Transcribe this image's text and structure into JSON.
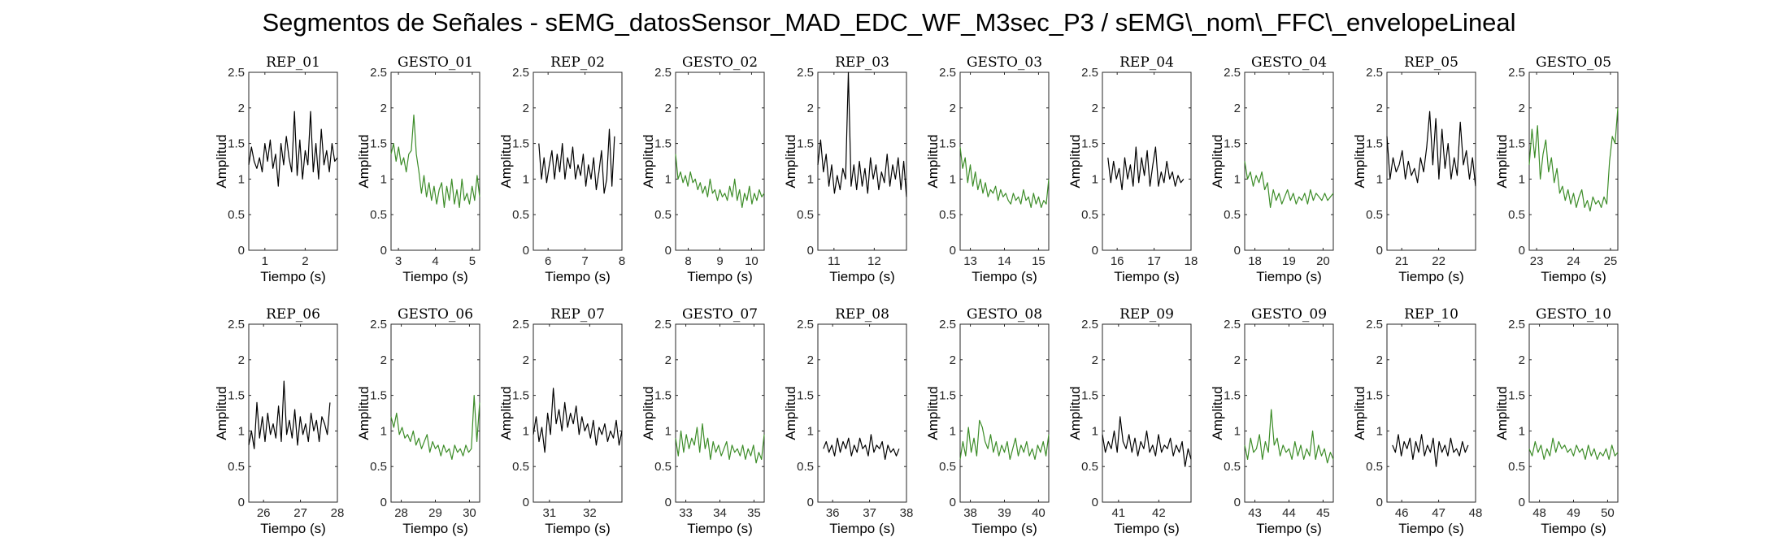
{
  "figure_title": "Segmentos de Señales - sEMG_datosSensor_MAD_EDC_WF_M3sec_P3 / sEMG\\_nom\\_FFC\\_envelopeLineal",
  "colors": {
    "rep": "#000000",
    "gesto": "#3c8c28",
    "axes": "#262626"
  },
  "chart_data": [
    {
      "type": "line",
      "title": "REP_01",
      "xlabel": "Tiempo (s)",
      "ylabel": "Amplitud",
      "xlim": [
        0.6,
        2.8
      ],
      "ylim": [
        0,
        2.5
      ],
      "xticks": [
        1,
        2
      ],
      "yticks": [
        0,
        0.5,
        1,
        1.5,
        2,
        2.5
      ],
      "color": "rep",
      "x_range": [
        0.6,
        2.8
      ],
      "y": [
        1.2,
        1.45,
        1.25,
        1.15,
        1.3,
        1.1,
        1.5,
        1.25,
        1.55,
        1.15,
        1.35,
        0.9,
        1.5,
        1.2,
        1.6,
        1.3,
        1.1,
        1.95,
        1.05,
        1.55,
        1.0,
        1.4,
        1.2,
        1.95,
        1.1,
        1.5,
        1.0,
        1.7,
        1.2,
        1.4,
        1.1,
        1.5,
        1.25,
        1.3
      ]
    },
    {
      "type": "line",
      "title": "GESTO_01",
      "xlabel": "Tiempo (s)",
      "ylabel": "Amplitud",
      "xlim": [
        2.8,
        5.2
      ],
      "ylim": [
        0,
        2.5
      ],
      "xticks": [
        3,
        4,
        5
      ],
      "yticks": [
        0,
        0.5,
        1,
        1.5,
        2,
        2.5
      ],
      "color": "gesto",
      "x_range": [
        2.8,
        5.2
      ],
      "y": [
        1.35,
        1.5,
        1.25,
        1.45,
        1.2,
        1.3,
        1.1,
        1.35,
        1.4,
        1.9,
        1.35,
        1.1,
        0.8,
        1.05,
        0.75,
        0.95,
        0.7,
        0.9,
        0.65,
        0.85,
        0.95,
        0.6,
        0.9,
        0.7,
        1.0,
        0.65,
        0.85,
        0.6,
        1.0,
        0.7,
        0.8,
        0.65,
        0.9,
        0.7,
        1.05,
        0.75
      ]
    },
    {
      "type": "line",
      "title": "REP_02",
      "xlabel": "Tiempo (s)",
      "ylabel": "Amplitud",
      "xlim": [
        5.6,
        8.0
      ],
      "ylim": [
        0,
        2.5
      ],
      "xticks": [
        6,
        7,
        8
      ],
      "yticks": [
        0,
        0.5,
        1,
        1.5,
        2,
        2.5
      ],
      "color": "rep",
      "x_range": [
        5.75,
        7.8
      ],
      "y": [
        1.5,
        1.0,
        1.3,
        0.95,
        1.2,
        1.4,
        1.0,
        1.35,
        1.1,
        1.5,
        1.0,
        1.3,
        1.15,
        1.45,
        1.0,
        1.2,
        1.05,
        1.35,
        0.9,
        1.2,
        1.0,
        1.3,
        0.85,
        1.1,
        1.4,
        0.8,
        1.0,
        1.7,
        0.9,
        1.6
      ]
    },
    {
      "type": "line",
      "title": "GESTO_02",
      "xlabel": "Tiempo (s)",
      "ylabel": "Amplitud",
      "xlim": [
        7.6,
        10.4
      ],
      "ylim": [
        0,
        2.5
      ],
      "xticks": [
        8,
        9,
        10
      ],
      "yticks": [
        0,
        0.5,
        1,
        1.5,
        2,
        2.5
      ],
      "color": "gesto",
      "x_range": [
        7.6,
        10.4
      ],
      "y": [
        1.35,
        1.0,
        1.1,
        0.95,
        1.05,
        0.9,
        1.1,
        0.95,
        1.0,
        0.85,
        0.95,
        0.8,
        0.9,
        0.75,
        1.0,
        0.8,
        0.85,
        0.7,
        0.85,
        0.75,
        0.8,
        0.7,
        0.9,
        0.75,
        1.0,
        0.7,
        0.85,
        0.6,
        0.8,
        0.7,
        0.9,
        0.65,
        0.8,
        0.7,
        0.85,
        0.75,
        0.8
      ]
    },
    {
      "type": "line",
      "title": "REP_03",
      "xlabel": "Tiempo (s)",
      "ylabel": "Amplitud",
      "xlim": [
        10.6,
        12.8
      ],
      "ylim": [
        0,
        2.5
      ],
      "xticks": [
        11,
        12
      ],
      "yticks": [
        0,
        0.5,
        1,
        1.5,
        2,
        2.5
      ],
      "color": "rep",
      "x_range": [
        10.6,
        12.8
      ],
      "y": [
        1.2,
        1.55,
        1.1,
        1.35,
        0.9,
        1.2,
        0.8,
        1.05,
        0.85,
        1.15,
        1.0,
        2.5,
        0.9,
        1.2,
        0.85,
        1.25,
        0.9,
        1.15,
        0.8,
        1.3,
        1.0,
        1.2,
        0.85,
        1.1,
        0.95,
        1.35,
        0.9,
        1.2,
        1.0,
        1.3,
        0.85,
        1.25,
        0.75
      ]
    },
    {
      "type": "line",
      "title": "GESTO_03",
      "xlabel": "Tiempo (s)",
      "ylabel": "Amplitud",
      "xlim": [
        12.7,
        15.3
      ],
      "ylim": [
        0,
        2.5
      ],
      "xticks": [
        13,
        14,
        15
      ],
      "yticks": [
        0,
        0.5,
        1,
        1.5,
        2,
        2.5
      ],
      "color": "gesto",
      "x_range": [
        12.7,
        15.3
      ],
      "y": [
        1.45,
        1.15,
        1.3,
        0.95,
        1.2,
        0.9,
        1.1,
        0.85,
        1.0,
        0.8,
        0.95,
        0.75,
        0.85,
        0.8,
        0.9,
        0.7,
        0.85,
        0.75,
        0.8,
        0.7,
        0.65,
        0.8,
        0.7,
        0.75,
        0.65,
        0.85,
        0.7,
        0.75,
        0.6,
        0.8,
        0.65,
        0.75,
        0.6,
        0.7,
        0.65,
        1.0
      ]
    },
    {
      "type": "line",
      "title": "REP_04",
      "xlabel": "Tiempo (s)",
      "ylabel": "Amplitud",
      "xlim": [
        15.6,
        18.0
      ],
      "ylim": [
        0,
        2.5
      ],
      "xticks": [
        16,
        17,
        18
      ],
      "yticks": [
        0,
        0.5,
        1,
        1.5,
        2,
        2.5
      ],
      "color": "rep",
      "x_range": [
        15.75,
        17.8
      ],
      "y": [
        1.3,
        0.95,
        1.25,
        1.0,
        1.15,
        0.85,
        1.3,
        1.0,
        1.2,
        0.9,
        1.45,
        0.95,
        1.3,
        1.05,
        1.4,
        0.9,
        1.2,
        1.45,
        0.9,
        1.1,
        0.95,
        1.25,
        1.0,
        1.1,
        0.9,
        1.05,
        0.95,
        1.0
      ]
    },
    {
      "type": "line",
      "title": "GESTO_04",
      "xlabel": "Tiempo (s)",
      "ylabel": "Amplitud",
      "xlim": [
        17.7,
        20.3
      ],
      "ylim": [
        0,
        2.5
      ],
      "xticks": [
        18,
        19,
        20
      ],
      "yticks": [
        0,
        0.5,
        1,
        1.5,
        2,
        2.5
      ],
      "color": "gesto",
      "x_range": [
        17.7,
        20.3
      ],
      "y": [
        1.25,
        1.0,
        1.1,
        0.9,
        1.05,
        0.95,
        1.1,
        0.85,
        0.95,
        0.6,
        0.85,
        0.7,
        0.8,
        0.65,
        0.75,
        0.85,
        0.7,
        0.8,
        0.65,
        0.75,
        0.7,
        0.8,
        0.65,
        0.85,
        0.7,
        0.8,
        0.75,
        0.7,
        0.8,
        0.7,
        0.75,
        0.8
      ]
    },
    {
      "type": "line",
      "title": "REP_05",
      "xlabel": "Tiempo (s)",
      "ylabel": "Amplitud",
      "xlim": [
        20.6,
        23.0
      ],
      "ylim": [
        0,
        2.5
      ],
      "xticks": [
        21,
        22
      ],
      "yticks": [
        0,
        0.5,
        1,
        1.5,
        2,
        2.5
      ],
      "color": "rep",
      "x_range": [
        20.6,
        23.0
      ],
      "y": [
        1.6,
        1.0,
        1.3,
        1.1,
        1.2,
        1.4,
        1.0,
        1.25,
        1.05,
        1.15,
        0.95,
        1.3,
        1.1,
        1.45,
        1.95,
        1.2,
        1.85,
        1.0,
        1.7,
        1.15,
        1.5,
        1.0,
        1.3,
        1.05,
        1.8,
        1.2,
        1.4,
        1.0,
        1.3,
        0.9
      ]
    },
    {
      "type": "line",
      "title": "GESTO_05",
      "xlabel": "Tiempo (s)",
      "ylabel": "Amplitud",
      "xlim": [
        22.8,
        25.2
      ],
      "ylim": [
        0,
        2.5
      ],
      "xticks": [
        23,
        24,
        25
      ],
      "yticks": [
        0,
        0.5,
        1,
        1.5,
        2,
        2.5
      ],
      "color": "gesto",
      "x_range": [
        22.8,
        25.2
      ],
      "y": [
        1.2,
        1.7,
        1.3,
        1.75,
        1.0,
        1.35,
        1.55,
        1.1,
        1.3,
        0.95,
        1.15,
        0.8,
        0.9,
        0.7,
        0.85,
        0.65,
        0.8,
        0.6,
        0.75,
        0.85,
        0.6,
        0.7,
        0.55,
        0.75,
        0.65,
        0.7,
        0.6,
        0.75,
        0.65,
        1.25,
        1.6,
        1.5,
        2.0
      ]
    },
    {
      "type": "line",
      "title": "REP_06",
      "xlabel": "Tiempo (s)",
      "ylabel": "Amplitud",
      "xlim": [
        25.6,
        28.0
      ],
      "ylim": [
        0,
        2.5
      ],
      "xticks": [
        26,
        27,
        28
      ],
      "yticks": [
        0,
        0.5,
        1,
        1.5,
        2,
        2.5
      ],
      "color": "rep",
      "x_range": [
        25.6,
        27.8
      ],
      "y": [
        0.8,
        1.0,
        0.75,
        1.4,
        0.9,
        1.2,
        0.85,
        1.25,
        0.95,
        1.1,
        0.9,
        1.35,
        0.85,
        1.7,
        0.95,
        1.15,
        0.9,
        1.3,
        0.8,
        1.2,
        0.95,
        1.1,
        0.85,
        1.25,
        1.0,
        1.15,
        0.85,
        1.2,
        1.1,
        0.95,
        1.4
      ]
    },
    {
      "type": "line",
      "title": "GESTO_06",
      "xlabel": "Tiempo (s)",
      "ylabel": "Amplitud",
      "xlim": [
        27.7,
        30.3
      ],
      "ylim": [
        0,
        2.5
      ],
      "xticks": [
        28,
        29,
        30
      ],
      "yticks": [
        0,
        0.5,
        1,
        1.5,
        2,
        2.5
      ],
      "color": "gesto",
      "x_range": [
        27.7,
        30.3
      ],
      "y": [
        1.2,
        1.05,
        1.25,
        0.95,
        1.05,
        0.9,
        0.95,
        0.85,
        1.0,
        0.8,
        0.9,
        0.75,
        0.85,
        0.95,
        0.7,
        0.85,
        0.75,
        0.8,
        0.65,
        0.8,
        0.7,
        0.75,
        0.6,
        0.8,
        0.7,
        0.75,
        0.65,
        0.8,
        0.7,
        0.75,
        1.5,
        0.85,
        1.4
      ]
    },
    {
      "type": "line",
      "title": "REP_07",
      "xlabel": "Tiempo (s)",
      "ylabel": "Amplitud",
      "xlim": [
        30.6,
        32.8
      ],
      "ylim": [
        0,
        2.5
      ],
      "xticks": [
        31,
        32
      ],
      "yticks": [
        0,
        0.5,
        1,
        1.5,
        2,
        2.5
      ],
      "color": "rep",
      "x_range": [
        30.6,
        32.8
      ],
      "y": [
        0.95,
        1.2,
        0.85,
        1.05,
        0.7,
        1.25,
        0.95,
        1.6,
        1.1,
        1.3,
        1.0,
        1.4,
        1.05,
        1.25,
        1.1,
        1.35,
        0.95,
        1.2,
        1.0,
        1.1,
        0.9,
        1.15,
        0.8,
        1.05,
        0.95,
        1.1,
        0.85,
        1.0,
        0.9,
        1.15,
        0.8,
        1.0
      ]
    },
    {
      "type": "line",
      "title": "GESTO_07",
      "xlabel": "Tiempo (s)",
      "ylabel": "Amplitud",
      "xlim": [
        32.7,
        35.3
      ],
      "ylim": [
        0,
        2.5
      ],
      "xticks": [
        33,
        34,
        35
      ],
      "yticks": [
        0,
        0.5,
        1,
        1.5,
        2,
        2.5
      ],
      "color": "gesto",
      "x_range": [
        32.7,
        35.3
      ],
      "y": [
        0.9,
        0.65,
        1.0,
        0.7,
        0.95,
        0.75,
        0.9,
        0.8,
        1.05,
        0.7,
        1.1,
        0.75,
        0.9,
        0.6,
        0.85,
        0.7,
        0.8,
        0.65,
        0.75,
        0.85,
        0.6,
        0.8,
        0.7,
        0.75,
        0.65,
        0.8,
        0.6,
        0.75,
        0.65,
        0.8,
        0.55,
        0.7,
        0.6,
        0.95
      ]
    },
    {
      "type": "line",
      "title": "REP_08",
      "xlabel": "Tiempo (s)",
      "ylabel": "Amplitud",
      "xlim": [
        35.6,
        38.0
      ],
      "ylim": [
        0,
        2.5
      ],
      "xticks": [
        36,
        37,
        38
      ],
      "yticks": [
        0,
        0.5,
        1,
        1.5,
        2,
        2.5
      ],
      "color": "rep",
      "x_range": [
        35.75,
        37.8
      ],
      "y": [
        0.75,
        0.85,
        0.7,
        0.8,
        0.65,
        0.9,
        0.7,
        0.85,
        0.75,
        0.9,
        0.65,
        0.8,
        0.7,
        0.9,
        0.75,
        0.8,
        0.65,
        0.95,
        0.7,
        0.8,
        0.75,
        0.85,
        0.6,
        0.8,
        0.7,
        0.75,
        0.65,
        0.75
      ]
    },
    {
      "type": "line",
      "title": "GESTO_08",
      "xlabel": "Tiempo (s)",
      "ylabel": "Amplitud",
      "xlim": [
        37.7,
        40.3
      ],
      "ylim": [
        0,
        2.5
      ],
      "xticks": [
        38,
        39,
        40
      ],
      "yticks": [
        0,
        0.5,
        1,
        1.5,
        2,
        2.5
      ],
      "color": "gesto",
      "x_range": [
        37.7,
        40.3
      ],
      "y": [
        0.6,
        0.85,
        0.65,
        1.05,
        0.7,
        0.9,
        0.65,
        1.15,
        1.05,
        0.85,
        0.75,
        0.95,
        0.7,
        0.85,
        0.65,
        0.8,
        0.7,
        0.85,
        0.6,
        0.75,
        0.9,
        0.65,
        0.8,
        0.7,
        0.85,
        0.65,
        0.75,
        0.6,
        0.8,
        0.7,
        0.85,
        0.65,
        0.95
      ]
    },
    {
      "type": "line",
      "title": "REP_09",
      "xlabel": "Tiempo (s)",
      "ylabel": "Amplitud",
      "xlim": [
        40.6,
        42.8
      ],
      "ylim": [
        0,
        2.5
      ],
      "xticks": [
        41,
        42
      ],
      "yticks": [
        0,
        0.5,
        1,
        1.5,
        2,
        2.5
      ],
      "color": "rep",
      "x_range": [
        40.6,
        42.8
      ],
      "y": [
        0.95,
        0.7,
        0.85,
        0.75,
        1.0,
        0.7,
        1.2,
        0.85,
        0.75,
        0.95,
        0.7,
        0.9,
        0.65,
        0.85,
        0.75,
        1.0,
        0.7,
        0.8,
        0.65,
        0.95,
        0.7,
        0.8,
        0.75,
        0.9,
        0.65,
        0.8,
        0.7,
        0.85,
        0.5,
        0.75,
        0.6
      ]
    },
    {
      "type": "line",
      "title": "GESTO_09",
      "xlabel": "Tiempo (s)",
      "ylabel": "Amplitud",
      "xlim": [
        42.7,
        45.3
      ],
      "ylim": [
        0,
        2.5
      ],
      "xticks": [
        43,
        44,
        45
      ],
      "yticks": [
        0,
        0.5,
        1,
        1.5,
        2,
        2.5
      ],
      "color": "gesto",
      "x_range": [
        42.7,
        45.3
      ],
      "y": [
        0.8,
        0.6,
        0.9,
        0.7,
        0.75,
        0.95,
        0.6,
        0.85,
        0.7,
        1.3,
        0.8,
        0.9,
        0.65,
        0.8,
        0.7,
        0.75,
        0.6,
        0.85,
        0.65,
        0.8,
        0.6,
        0.75,
        0.65,
        1.0,
        0.6,
        0.8,
        0.65,
        0.75,
        0.55,
        0.7,
        0.6
      ]
    },
    {
      "type": "line",
      "title": "REP_10",
      "xlabel": "Tiempo (s)",
      "ylabel": "Amplitud",
      "xlim": [
        45.6,
        48.0
      ],
      "ylim": [
        0,
        2.5
      ],
      "xticks": [
        46,
        47,
        48
      ],
      "yticks": [
        0,
        0.5,
        1,
        1.5,
        2,
        2.5
      ],
      "color": "rep",
      "x_range": [
        45.75,
        47.8
      ],
      "y": [
        0.8,
        0.7,
        0.95,
        0.65,
        0.85,
        0.75,
        0.9,
        0.6,
        0.85,
        0.7,
        0.95,
        0.65,
        0.8,
        0.7,
        0.9,
        0.5,
        0.85,
        0.7,
        0.8,
        0.65,
        0.9,
        0.7,
        0.75,
        0.65,
        0.85,
        0.7,
        0.8
      ]
    },
    {
      "type": "line",
      "title": "GESTO_10",
      "xlabel": "Tiempo (s)",
      "ylabel": "Amplitud",
      "xlim": [
        47.7,
        50.3
      ],
      "ylim": [
        0,
        2.5
      ],
      "xticks": [
        48,
        49,
        50
      ],
      "yticks": [
        0,
        0.5,
        1,
        1.5,
        2,
        2.5
      ],
      "color": "gesto",
      "x_range": [
        47.7,
        50.3
      ],
      "y": [
        0.75,
        0.65,
        0.85,
        0.7,
        0.8,
        0.6,
        0.75,
        0.65,
        0.9,
        0.7,
        0.85,
        0.75,
        0.8,
        0.7,
        0.75,
        0.65,
        0.8,
        0.7,
        0.75,
        0.6,
        0.8,
        0.65,
        0.75,
        0.6,
        0.7,
        0.65,
        0.75,
        0.6,
        0.8,
        0.65,
        0.7
      ]
    }
  ]
}
